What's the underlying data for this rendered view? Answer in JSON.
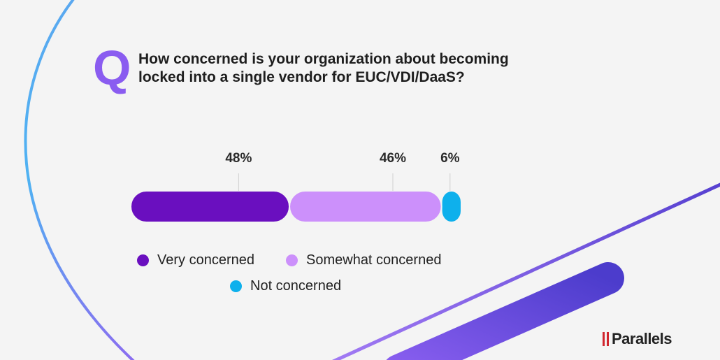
{
  "header": {
    "q_mark": "Q",
    "title": "How concerned is your organization about becoming locked into a single vendor for EUC/VDI/DaaS?"
  },
  "chart_data": {
    "type": "bar",
    "orientation": "horizontal-stacked",
    "unit": "%",
    "categories": [
      "Very concerned",
      "Somewhat concerned",
      "Not concerned"
    ],
    "values": [
      48,
      46,
      6
    ],
    "labels": [
      "48%",
      "46%",
      "6%"
    ],
    "colors": [
      "#6a0fbf",
      "#cc90fb",
      "#0eb0ec"
    ],
    "legend_placement": "bottom",
    "grid": false
  },
  "legend": [
    {
      "label": "Very concerned",
      "color": "#6a0fbf"
    },
    {
      "label": "Somewhat concerned",
      "color": "#cc90fb"
    },
    {
      "label": "Not concerned",
      "color": "#0eb0ec"
    }
  ],
  "brand": {
    "name": "Parallels",
    "color": "#d0262e"
  }
}
